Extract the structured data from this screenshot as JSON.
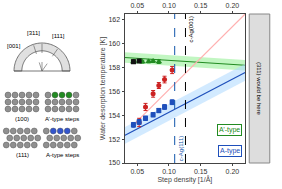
{
  "chart_data": {
    "type": "scatter",
    "xlabel": "Step density [1/Å]",
    "ylabel": "Water desorption temperature [K]",
    "xlim": [
      0.03,
      0.22
    ],
    "ylim": [
      150,
      162.5
    ],
    "xticks": [
      0.05,
      {
        "value": 0.1,
        "label": "0.10"
      },
      0.15,
      {
        "value": 0.2,
        "label": "0.20"
      }
    ],
    "yticks": [
      150,
      152,
      154,
      156,
      158,
      160,
      162
    ],
    "grid": false,
    "series": [
      {
        "type": "band",
        "x": [
          0.03,
          0.22
        ],
        "upper": [
          159.3,
          158.65
        ],
        "lower": [
          158.4,
          157.75
        ],
        "color": "#90EE90"
      },
      {
        "type": "line",
        "x": [
          0.03,
          0.22
        ],
        "values": [
          158.85,
          158.2
        ],
        "color": "#228B22"
      },
      {
        "type": "band",
        "x": [
          0.03,
          0.22
        ],
        "upper": [
          153.0,
          158.3
        ],
        "lower": [
          151.6,
          156.9
        ],
        "color": "#ADD8FF"
      },
      {
        "type": "line",
        "x": [
          0.03,
          0.22
        ],
        "values": [
          152.3,
          157.6
        ],
        "color": "#1E4FBB"
      },
      {
        "type": "line",
        "x": [
          0.044,
          0.22
        ],
        "values": [
          153.2,
          162.5
        ],
        "color": "#FFB0B0"
      },
      {
        "type": "scatter",
        "marker": "triangle-up",
        "color": "#228B22",
        "x": [
          0.044,
          0.053,
          0.058,
          0.068,
          0.075,
          0.084
        ],
        "values": [
          158.5,
          158.55,
          158.5,
          158.52,
          158.55,
          158.5
        ],
        "yerr": [
          0.15,
          0.12,
          0.12,
          0.12,
          0.12,
          0.15
        ]
      },
      {
        "type": "scatter",
        "marker": "square",
        "color": "#111111",
        "x": [
          0.044,
          0.053
        ],
        "values": [
          158.5,
          158.55
        ],
        "yerr": [
          0.15,
          0.12
        ]
      },
      {
        "type": "scatter",
        "marker": "circle",
        "color": "#CC2222",
        "x": [
          0.053,
          0.063,
          0.075,
          0.084,
          0.093,
          0.105
        ],
        "values": [
          153.4,
          154.7,
          155.8,
          156.5,
          157.0,
          157.8
        ],
        "yerr": [
          0.35,
          0.3,
          0.28,
          0.25,
          0.28,
          0.3
        ]
      },
      {
        "type": "scatter",
        "marker": "square",
        "color": "#1E4FBB",
        "x": [
          0.044,
          0.053,
          0.063,
          0.075,
          0.084,
          0.093,
          0.105
        ],
        "values": [
          153.2,
          153.45,
          153.75,
          154.05,
          154.4,
          154.7,
          155.1
        ],
        "yerr": [
          0.2,
          0.2,
          0.18,
          0.18,
          0.18,
          0.2,
          0.2
        ]
      }
    ],
    "vlines": [
      {
        "x": 0.126,
        "label": "c-Ag(001)",
        "color": "black"
      },
      {
        "x": 0.109,
        "label": "c-Ag(111)",
        "color": "#1155AA"
      }
    ],
    "annotations": [
      {
        "text": "A’-type",
        "color": "#228B22"
      },
      {
        "text": "A-type",
        "color": "#1E4FBB"
      }
    ],
    "side_box": "(311) would be here",
    "diagram": {
      "directions": [
        "[001]",
        "[311]",
        "[111]"
      ],
      "panels": [
        {
          "text": "(100)"
        },
        {
          "text": "A’-type steps",
          "color": "#228B22"
        },
        {
          "text": "(111)"
        },
        {
          "text": "A-type steps",
          "color": "#3355CC"
        }
      ]
    }
  }
}
